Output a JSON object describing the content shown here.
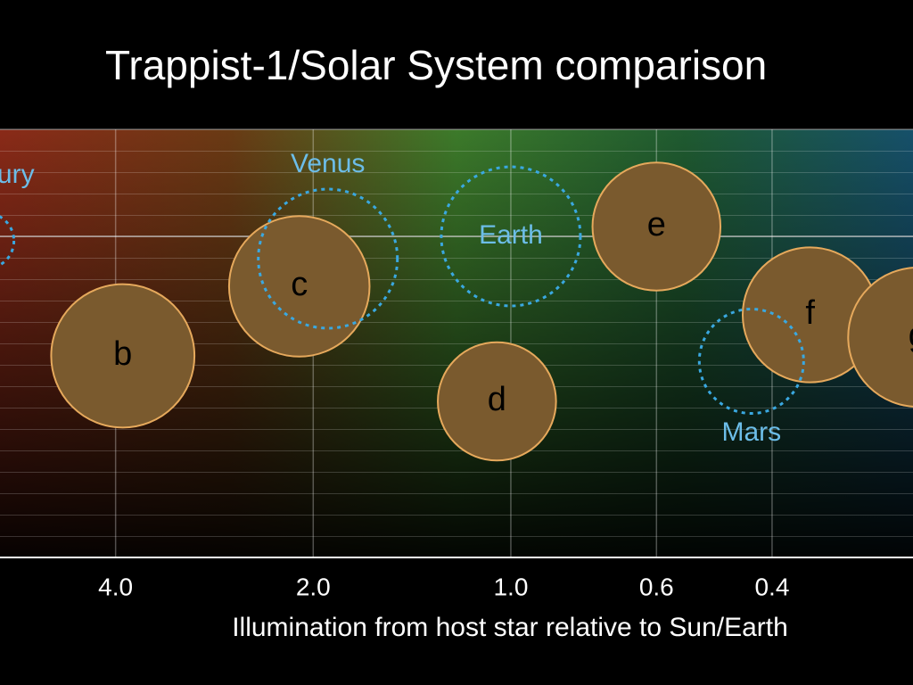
{
  "chart_data": {
    "type": "bubble",
    "title": "Trappist-1/Solar System comparison",
    "x_label": "Illumination from host star relative to Sun/Earth",
    "xscale": "log",
    "xlim": [
      6,
      0.244
    ],
    "xticks": [
      {
        "value": 4,
        "label": "4.0"
      },
      {
        "value": 2,
        "label": "2.0"
      },
      {
        "value": 1,
        "label": "1.0"
      },
      0.6,
      0.4
    ],
    "trappist": {
      "fill": "#7a5a2e",
      "edge": "#e6a95c",
      "text_color": "#000000",
      "labels": [
        "b",
        "c",
        "d",
        "e",
        "f",
        "g"
      ],
      "x": [
        3.9,
        2.1,
        1.05,
        0.6,
        0.35,
        0.24
      ],
      "size": [
        1.03,
        1.01,
        0.85,
        0.92,
        0.97,
        1.0
      ]
    },
    "solar_system": {
      "color": "#3aa8e0",
      "text_color": "#6cbde8",
      "labels": [
        "Mercury",
        "Venus",
        "Earth",
        "Mars"
      ],
      "x": [
        6.3,
        1.9,
        1.0,
        0.43
      ],
      "size": [
        0.4,
        1.0,
        1.0,
        0.75
      ]
    }
  }
}
